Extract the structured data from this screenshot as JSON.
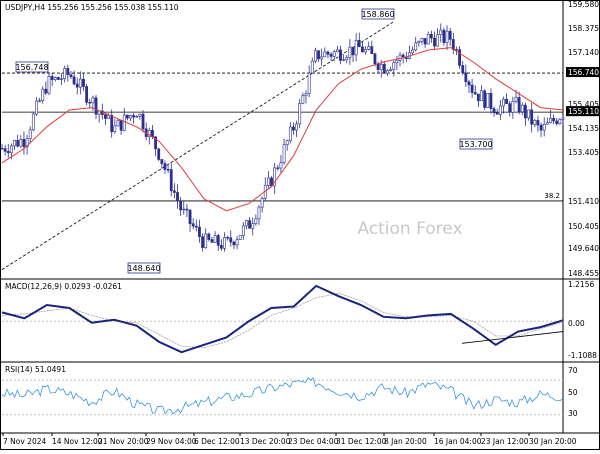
{
  "colors": {
    "background": "#ffffff",
    "candle_up": "#ffffff",
    "candle_down": "#2a2f8f",
    "candle_outline": "#2a2f8f",
    "moving_average": "#e53935",
    "macd_line": "#1a237e",
    "macd_signal": "#9e9e9e",
    "rsi_line": "#1e88e5",
    "trend_line": "#000000",
    "level_box": "#2a2f8f",
    "grid_dotted": "#bdbdbd",
    "watermark": "#c8c8c8"
  },
  "chart_data": [
    {
      "type": "candlestick",
      "title": "USDJPY,H4  155.256 155.256 155.038 155.110",
      "watermark": "Action Forex",
      "y_ticks": [
        "159.580",
        "158.375",
        "157.140",
        "155.405",
        "154.135",
        "153.405",
        "151.410",
        "150.405",
        "149.640",
        "148.455"
      ],
      "ylim": [
        148.2,
        159.7
      ],
      "x_ticks": [
        "7 Nov 2024",
        "14 Nov 12:00",
        "21 Nov 20:00",
        "29 Nov 04:00",
        "6 Dec 12:00",
        "13 Dec 20:00",
        "23 Dec 04:00",
        "31 Dec 12:00",
        "8 Jan 20:00",
        "16 Jan 04:00",
        "23 Jan 12:00",
        "30 Jan 20:00"
      ],
      "current_price": "155.110",
      "horizontal_levels": [
        {
          "value": 156.74,
          "style": "dashed",
          "label": "156.740"
        },
        {
          "value": 155.11,
          "style": "solid",
          "label": "155.110"
        },
        {
          "value": 151.41,
          "style": "solid",
          "label": "38.2"
        }
      ],
      "annotations": [
        {
          "label": "156.748",
          "at": "14 Nov"
        },
        {
          "label": "158.860",
          "at": "10 Jan"
        },
        {
          "label": "153.700",
          "at": "27 Jan"
        },
        {
          "label": "148.640",
          "at": "3 Dec"
        }
      ],
      "trend_line": {
        "from": {
          "x": "7 Nov 2024",
          "y": 148.55
        },
        "to": {
          "x": "10 Jan",
          "y": 158.86
        }
      },
      "close_path": {
        "x": [
          0,
          4,
          8,
          12,
          16,
          20,
          24,
          28,
          32,
          36,
          40,
          44,
          48,
          52,
          56,
          60,
          64,
          68,
          72,
          76,
          80,
          84,
          88,
          92,
          96,
          100
        ],
        "y": [
          153.6,
          154.0,
          156.3,
          156.7,
          155.6,
          154.4,
          155.2,
          153.4,
          151.0,
          149.7,
          149.6,
          150.4,
          152.3,
          154.5,
          157.5,
          157.6,
          157.8,
          157.0,
          157.5,
          158.2,
          158.2,
          156.0,
          155.3,
          155.4,
          154.3,
          155.1
        ]
      },
      "moving_average": {
        "x": [
          0,
          4,
          8,
          12,
          16,
          20,
          24,
          28,
          32,
          36,
          40,
          44,
          48,
          52,
          56,
          60,
          64,
          68,
          72,
          76,
          80,
          84,
          88,
          92,
          96,
          100
        ],
        "y": [
          153.0,
          153.6,
          154.5,
          155.2,
          155.3,
          154.9,
          154.5,
          153.9,
          152.8,
          151.5,
          151.0,
          151.3,
          152.0,
          153.3,
          155.2,
          156.3,
          156.9,
          157.2,
          157.4,
          157.7,
          157.8,
          157.2,
          156.5,
          155.9,
          155.3,
          155.2
        ]
      }
    },
    {
      "type": "line",
      "title": "MACD(12,26,9) 0.0293 -0.0261",
      "y_ticks": [
        "1.2156",
        "0.00",
        "-1.1088"
      ],
      "ylim": [
        -1.35,
        1.4
      ],
      "zero_label": "0.00",
      "x": [
        0,
        4,
        8,
        12,
        16,
        20,
        24,
        28,
        32,
        36,
        40,
        44,
        48,
        52,
        56,
        60,
        64,
        68,
        72,
        76,
        80,
        84,
        88,
        92,
        96,
        100
      ],
      "series": [
        {
          "name": "MACD",
          "values": [
            0.3,
            0.1,
            0.55,
            0.45,
            -0.05,
            0.05,
            -0.15,
            -0.7,
            -1.05,
            -0.8,
            -0.55,
            0.0,
            0.45,
            0.5,
            1.2,
            0.85,
            0.55,
            0.15,
            0.1,
            0.2,
            0.25,
            -0.25,
            -0.8,
            -0.35,
            -0.2,
            0.03
          ]
        },
        {
          "name": "Signal",
          "values": [
            0.2,
            0.25,
            0.35,
            0.45,
            0.2,
            0.0,
            -0.05,
            -0.45,
            -0.85,
            -0.9,
            -0.7,
            -0.3,
            0.2,
            0.45,
            0.8,
            0.95,
            0.7,
            0.3,
            0.15,
            0.15,
            0.2,
            0.0,
            -0.5,
            -0.5,
            -0.25,
            -0.03
          ]
        }
      ],
      "trend_line": {
        "from": {
          "x": 82,
          "y": -0.75
        },
        "to": {
          "x": 100,
          "y": -0.35
        }
      }
    },
    {
      "type": "line",
      "title": "RSI(14) 51.0491",
      "y_ticks": [
        "70",
        "50",
        "30"
      ],
      "ylim": [
        10,
        90
      ],
      "x": [
        0,
        4,
        8,
        12,
        16,
        20,
        24,
        28,
        32,
        36,
        40,
        44,
        48,
        52,
        56,
        60,
        64,
        68,
        72,
        76,
        80,
        84,
        88,
        92,
        96,
        100
      ],
      "series": [
        {
          "name": "RSI",
          "values": [
            55,
            52,
            60,
            55,
            45,
            58,
            42,
            34,
            38,
            44,
            50,
            54,
            61,
            66,
            68,
            58,
            52,
            62,
            55,
            66,
            58,
            40,
            48,
            44,
            54,
            51
          ]
        }
      ]
    }
  ]
}
